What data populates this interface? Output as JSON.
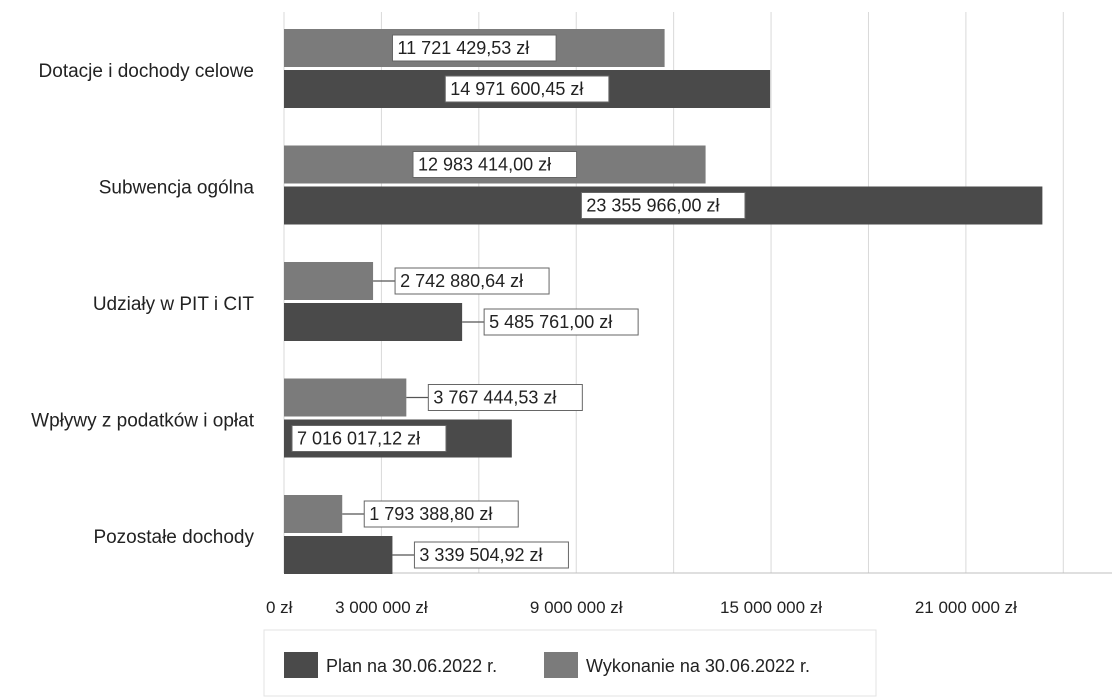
{
  "chart_data": {
    "type": "bar",
    "orientation": "horizontal",
    "title": "",
    "xlabel": "",
    "ylabel": "",
    "categories": [
      "Dotacje i dochody celowe",
      "Subwencja ogólna",
      "Udziały w PIT i CIT",
      "Wpływy z podatków i opłat",
      "Pozostałe dochody"
    ],
    "series": [
      {
        "name": "Wykonanie na 30.06.2022 r.",
        "color": "#7b7b7b",
        "values": [
          11721429.53,
          12983414.0,
          2742880.64,
          3767444.53,
          1793388.8
        ],
        "labels": [
          "11 721 429,53 zł",
          "12 983 414,00 zł",
          "2 742 880,64 zł",
          "3 767 444,53 zł",
          "1 793 388,80 zł"
        ]
      },
      {
        "name": "Plan na 30.06.2022 r.",
        "color": "#4a4a4a",
        "values": [
          14971600.45,
          23355966.0,
          5485761.0,
          7016017.12,
          3339504.92
        ],
        "labels": [
          "14 971 600,45 zł",
          "23 355 966,00 zł",
          "5 485 761,00 zł",
          "7 016 017,12 zł",
          "3 339 504,92 zł"
        ]
      }
    ],
    "xlim": [
      0,
      25500000
    ],
    "x_ticks": [
      {
        "value": 0,
        "label": "0 zł"
      },
      {
        "value": 3000000,
        "label": "3 000 000 zł"
      },
      {
        "value": 9000000,
        "label": "9 000 000 zł"
      },
      {
        "value": 15000000,
        "label": "15 000 000 zł"
      },
      {
        "value": 21000000,
        "label": "21 000 000 zł"
      }
    ],
    "gridlines": [
      0,
      3000000,
      6000000,
      9000000,
      12000000,
      15000000,
      18000000,
      21000000,
      24000000
    ],
    "grid": true,
    "legend": {
      "position": "bottom",
      "entries": [
        {
          "label": "Plan na 30.06.2022 r.",
          "color": "#4a4a4a"
        },
        {
          "label": "Wykonanie na 30.06.2022 r.",
          "color": "#7b7b7b"
        }
      ]
    }
  }
}
